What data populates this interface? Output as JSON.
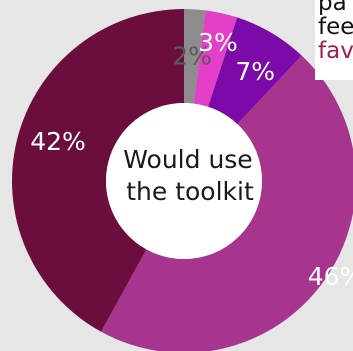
{
  "chart_data": {
    "type": "pie",
    "title": "Would use the toolkit",
    "center_label_lines": [
      "Would use",
      "the toolkit"
    ],
    "slices": [
      {
        "label": "2%",
        "value": 2,
        "color": "#8c8c8c"
      },
      {
        "label": "3%",
        "value": 3,
        "color": "#e33fc8"
      },
      {
        "label": "7%",
        "value": 7,
        "color": "#7b0aa8"
      },
      {
        "label": "46%",
        "value": 46,
        "color": "#a7358d"
      },
      {
        "label": "42%",
        "value": 42,
        "color": "#6b0e3e"
      }
    ]
  },
  "legend_fragment": {
    "lines": [
      {
        "text": "pa",
        "color": "#111111"
      },
      {
        "text": "fee",
        "color": "#111111"
      },
      {
        "text": "fav",
        "color": "#a31c4f"
      }
    ]
  }
}
